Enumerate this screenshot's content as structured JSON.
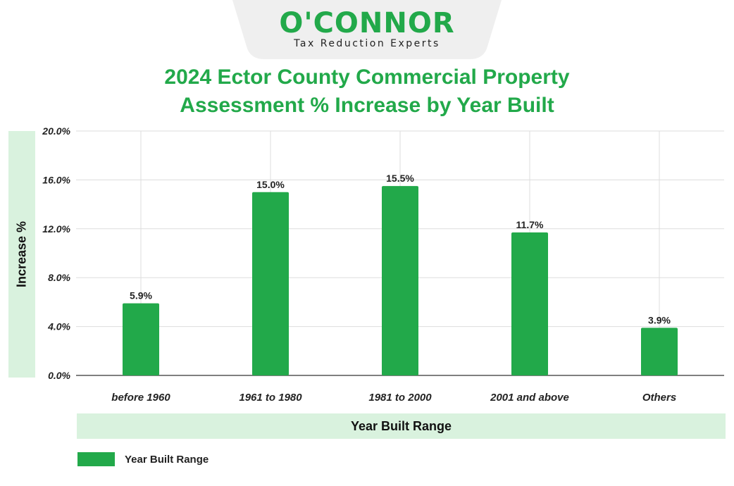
{
  "logo": {
    "wordmark": "O'CONNOR",
    "tagline": "Tax Reduction Experts"
  },
  "colors": {
    "brand_green": "#22a94a",
    "band_fill": "#d9f2de",
    "grid": "#dddddd"
  },
  "chart_data": {
    "type": "bar",
    "title_line1": "2024 Ector County Commercial Property",
    "title_line2": "Assessment % Increase by Year Built",
    "xlabel": "Year Built Range",
    "ylabel": "Increase %",
    "categories": [
      "before 1960",
      "1961 to 1980",
      "1981 to 2000",
      "2001 and above",
      "Others"
    ],
    "series": [
      {
        "name": "Year Built Range",
        "values": [
          5.9,
          15.0,
          15.5,
          11.7,
          3.9
        ],
        "data_labels": [
          "5.9%",
          "15.0%",
          "15.5%",
          "11.7%",
          "3.9%"
        ]
      }
    ],
    "ylim": [
      0,
      20
    ],
    "yticks": [
      "0.0%",
      "4.0%",
      "8.0%",
      "12.0%",
      "16.0%",
      "20.0%"
    ],
    "grid": true,
    "legend_position": "bottom-left"
  }
}
